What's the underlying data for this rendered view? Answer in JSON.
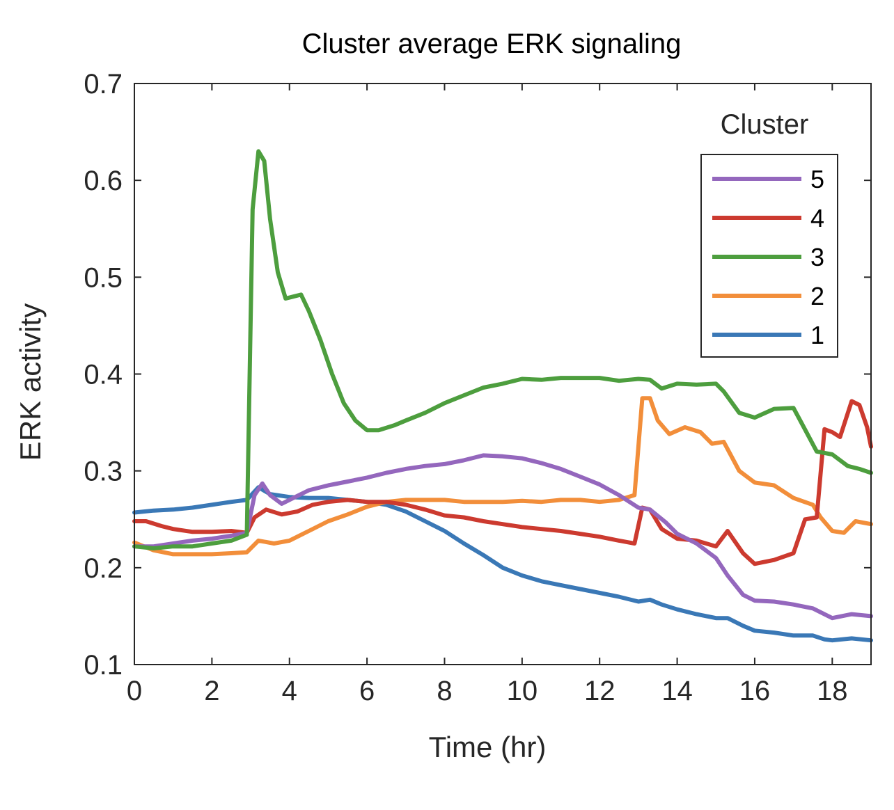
{
  "chart_data": {
    "type": "line",
    "title": "Cluster average ERK signaling",
    "xlabel": "Time (hr)",
    "ylabel": "ERK activity",
    "xlim": [
      0,
      19
    ],
    "ylim": [
      0.1,
      0.7
    ],
    "xticks": [
      0,
      2,
      4,
      6,
      8,
      10,
      12,
      14,
      16,
      18
    ],
    "xtick_labels": [
      "0",
      "2",
      "4",
      "6",
      "8",
      "10",
      "12",
      "14",
      "16",
      "18"
    ],
    "yticks": [
      0.1,
      0.2,
      0.3,
      0.4,
      0.5,
      0.6,
      0.7
    ],
    "ytick_labels": [
      "0.1",
      "0.2",
      "0.3",
      "0.4",
      "0.5",
      "0.6",
      "0.7"
    ],
    "grid": false,
    "legend": {
      "title": "Cluster",
      "placement": "top-right",
      "order": [
        "5",
        "4",
        "3",
        "2",
        "1"
      ]
    },
    "series": [
      {
        "name": "5",
        "color": "#9467bd",
        "points": [
          [
            0,
            0.222
          ],
          [
            0.5,
            0.222
          ],
          [
            1,
            0.225
          ],
          [
            1.5,
            0.228
          ],
          [
            2,
            0.23
          ],
          [
            2.5,
            0.233
          ],
          [
            2.9,
            0.236
          ],
          [
            3.1,
            0.275
          ],
          [
            3.3,
            0.287
          ],
          [
            3.5,
            0.275
          ],
          [
            3.8,
            0.266
          ],
          [
            4.1,
            0.272
          ],
          [
            4.5,
            0.28
          ],
          [
            5,
            0.285
          ],
          [
            5.5,
            0.289
          ],
          [
            6,
            0.293
          ],
          [
            6.5,
            0.298
          ],
          [
            7,
            0.302
          ],
          [
            7.5,
            0.305
          ],
          [
            8,
            0.307
          ],
          [
            8.5,
            0.311
          ],
          [
            9,
            0.316
          ],
          [
            9.5,
            0.315
          ],
          [
            10,
            0.313
          ],
          [
            10.5,
            0.308
          ],
          [
            11,
            0.302
          ],
          [
            11.5,
            0.294
          ],
          [
            12,
            0.286
          ],
          [
            12.5,
            0.275
          ],
          [
            13,
            0.262
          ],
          [
            13.3,
            0.26
          ],
          [
            13.7,
            0.247
          ],
          [
            14,
            0.235
          ],
          [
            14.5,
            0.225
          ],
          [
            15,
            0.21
          ],
          [
            15.3,
            0.192
          ],
          [
            15.7,
            0.172
          ],
          [
            16,
            0.166
          ],
          [
            16.5,
            0.165
          ],
          [
            17,
            0.162
          ],
          [
            17.5,
            0.158
          ],
          [
            18,
            0.148
          ],
          [
            18.5,
            0.152
          ],
          [
            19,
            0.15
          ]
        ]
      },
      {
        "name": "4",
        "color": "#cc3a2f",
        "points": [
          [
            0,
            0.248
          ],
          [
            0.3,
            0.248
          ],
          [
            0.7,
            0.243
          ],
          [
            1,
            0.24
          ],
          [
            1.5,
            0.237
          ],
          [
            2,
            0.237
          ],
          [
            2.5,
            0.238
          ],
          [
            2.9,
            0.236
          ],
          [
            3.1,
            0.252
          ],
          [
            3.4,
            0.26
          ],
          [
            3.8,
            0.255
          ],
          [
            4.2,
            0.258
          ],
          [
            4.6,
            0.265
          ],
          [
            5,
            0.268
          ],
          [
            5.5,
            0.27
          ],
          [
            6,
            0.268
          ],
          [
            6.5,
            0.268
          ],
          [
            7,
            0.265
          ],
          [
            7.5,
            0.26
          ],
          [
            8,
            0.254
          ],
          [
            8.5,
            0.252
          ],
          [
            9,
            0.248
          ],
          [
            9.5,
            0.245
          ],
          [
            10,
            0.242
          ],
          [
            10.5,
            0.24
          ],
          [
            11,
            0.238
          ],
          [
            11.5,
            0.235
          ],
          [
            12,
            0.232
          ],
          [
            12.5,
            0.228
          ],
          [
            12.9,
            0.225
          ],
          [
            13.1,
            0.262
          ],
          [
            13.3,
            0.26
          ],
          [
            13.6,
            0.24
          ],
          [
            14,
            0.23
          ],
          [
            14.5,
            0.228
          ],
          [
            15,
            0.222
          ],
          [
            15.3,
            0.238
          ],
          [
            15.7,
            0.215
          ],
          [
            16,
            0.204
          ],
          [
            16.5,
            0.208
          ],
          [
            17,
            0.215
          ],
          [
            17.3,
            0.25
          ],
          [
            17.6,
            0.252
          ],
          [
            17.8,
            0.343
          ],
          [
            18,
            0.34
          ],
          [
            18.2,
            0.335
          ],
          [
            18.5,
            0.372
          ],
          [
            18.7,
            0.368
          ],
          [
            18.9,
            0.345
          ],
          [
            19,
            0.325
          ]
        ]
      },
      {
        "name": "3",
        "color": "#4d9e3e",
        "points": [
          [
            0,
            0.222
          ],
          [
            0.5,
            0.22
          ],
          [
            1,
            0.222
          ],
          [
            1.5,
            0.222
          ],
          [
            2,
            0.225
          ],
          [
            2.5,
            0.228
          ],
          [
            2.9,
            0.234
          ],
          [
            3.05,
            0.57
          ],
          [
            3.2,
            0.63
          ],
          [
            3.35,
            0.62
          ],
          [
            3.5,
            0.56
          ],
          [
            3.7,
            0.505
          ],
          [
            3.9,
            0.478
          ],
          [
            4.1,
            0.48
          ],
          [
            4.3,
            0.482
          ],
          [
            4.5,
            0.465
          ],
          [
            4.8,
            0.435
          ],
          [
            5.1,
            0.4
          ],
          [
            5.4,
            0.37
          ],
          [
            5.7,
            0.352
          ],
          [
            6,
            0.342
          ],
          [
            6.3,
            0.342
          ],
          [
            6.7,
            0.347
          ],
          [
            7,
            0.352
          ],
          [
            7.5,
            0.36
          ],
          [
            8,
            0.37
          ],
          [
            8.5,
            0.378
          ],
          [
            9,
            0.386
          ],
          [
            9.5,
            0.39
          ],
          [
            10,
            0.395
          ],
          [
            10.5,
            0.394
          ],
          [
            11,
            0.396
          ],
          [
            11.5,
            0.396
          ],
          [
            12,
            0.396
          ],
          [
            12.5,
            0.393
          ],
          [
            13,
            0.395
          ],
          [
            13.3,
            0.394
          ],
          [
            13.6,
            0.385
          ],
          [
            14,
            0.39
          ],
          [
            14.5,
            0.389
          ],
          [
            15,
            0.39
          ],
          [
            15.2,
            0.382
          ],
          [
            15.6,
            0.36
          ],
          [
            16,
            0.355
          ],
          [
            16.5,
            0.364
          ],
          [
            17,
            0.365
          ],
          [
            17.2,
            0.35
          ],
          [
            17.6,
            0.32
          ],
          [
            18,
            0.317
          ],
          [
            18.4,
            0.305
          ],
          [
            18.7,
            0.302
          ],
          [
            19,
            0.298
          ]
        ]
      },
      {
        "name": "2",
        "color": "#f28e3a",
        "points": [
          [
            0,
            0.226
          ],
          [
            0.5,
            0.218
          ],
          [
            1,
            0.214
          ],
          [
            1.5,
            0.214
          ],
          [
            2,
            0.214
          ],
          [
            2.5,
            0.215
          ],
          [
            2.9,
            0.216
          ],
          [
            3.2,
            0.228
          ],
          [
            3.6,
            0.225
          ],
          [
            4,
            0.228
          ],
          [
            4.5,
            0.238
          ],
          [
            5,
            0.248
          ],
          [
            5.5,
            0.255
          ],
          [
            6,
            0.263
          ],
          [
            6.5,
            0.268
          ],
          [
            7,
            0.27
          ],
          [
            7.5,
            0.27
          ],
          [
            8,
            0.27
          ],
          [
            8.5,
            0.268
          ],
          [
            9,
            0.268
          ],
          [
            9.5,
            0.268
          ],
          [
            10,
            0.269
          ],
          [
            10.5,
            0.268
          ],
          [
            11,
            0.27
          ],
          [
            11.5,
            0.27
          ],
          [
            12,
            0.268
          ],
          [
            12.5,
            0.27
          ],
          [
            12.9,
            0.275
          ],
          [
            13.1,
            0.375
          ],
          [
            13.3,
            0.375
          ],
          [
            13.5,
            0.352
          ],
          [
            13.8,
            0.338
          ],
          [
            14.2,
            0.345
          ],
          [
            14.6,
            0.34
          ],
          [
            14.9,
            0.328
          ],
          [
            15.2,
            0.33
          ],
          [
            15.6,
            0.3
          ],
          [
            16,
            0.288
          ],
          [
            16.5,
            0.285
          ],
          [
            17,
            0.272
          ],
          [
            17.5,
            0.265
          ],
          [
            17.7,
            0.252
          ],
          [
            18,
            0.238
          ],
          [
            18.3,
            0.236
          ],
          [
            18.6,
            0.248
          ],
          [
            19,
            0.245
          ]
        ]
      },
      {
        "name": "1",
        "color": "#3a78b6",
        "points": [
          [
            0,
            0.257
          ],
          [
            0.5,
            0.259
          ],
          [
            1,
            0.26
          ],
          [
            1.5,
            0.262
          ],
          [
            2,
            0.265
          ],
          [
            2.5,
            0.268
          ],
          [
            2.9,
            0.27
          ],
          [
            3.2,
            0.283
          ],
          [
            3.5,
            0.276
          ],
          [
            4,
            0.273
          ],
          [
            4.5,
            0.272
          ],
          [
            5,
            0.272
          ],
          [
            5.5,
            0.27
          ],
          [
            6,
            0.268
          ],
          [
            6.5,
            0.265
          ],
          [
            7,
            0.258
          ],
          [
            7.5,
            0.248
          ],
          [
            8,
            0.238
          ],
          [
            8.5,
            0.225
          ],
          [
            9,
            0.213
          ],
          [
            9.5,
            0.2
          ],
          [
            10,
            0.192
          ],
          [
            10.5,
            0.186
          ],
          [
            11,
            0.182
          ],
          [
            11.5,
            0.178
          ],
          [
            12,
            0.174
          ],
          [
            12.5,
            0.17
          ],
          [
            13,
            0.165
          ],
          [
            13.3,
            0.167
          ],
          [
            13.6,
            0.162
          ],
          [
            14,
            0.157
          ],
          [
            14.5,
            0.152
          ],
          [
            15,
            0.148
          ],
          [
            15.3,
            0.148
          ],
          [
            15.7,
            0.14
          ],
          [
            16,
            0.135
          ],
          [
            16.5,
            0.133
          ],
          [
            17,
            0.13
          ],
          [
            17.5,
            0.13
          ],
          [
            17.8,
            0.126
          ],
          [
            18,
            0.125
          ],
          [
            18.5,
            0.127
          ],
          [
            19,
            0.125
          ]
        ]
      }
    ]
  }
}
